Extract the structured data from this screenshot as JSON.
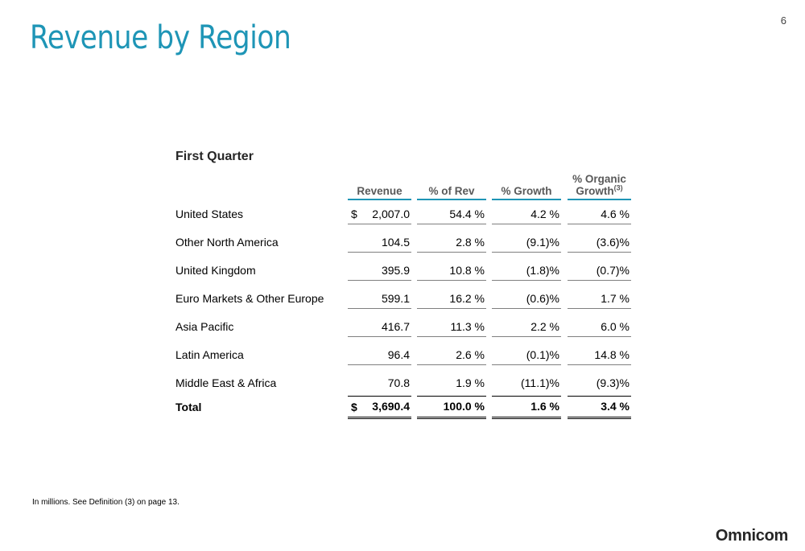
{
  "page_number": "6",
  "title": "Revenue by Region",
  "section": "First Quarter",
  "columns": {
    "revenue": "Revenue",
    "pct_rev": "% of Rev",
    "pct_growth": "% Growth",
    "organic_line1": "% Organic",
    "organic_line2": "Growth",
    "organic_sup": "(3)"
  },
  "rows": [
    {
      "label": "United States",
      "dollar": "$",
      "revenue": "2,007.0",
      "pct_rev": "54.4 %",
      "growth": "4.2 %",
      "organic": "4.6 %"
    },
    {
      "label": "Other North America",
      "dollar": "",
      "revenue": "104.5",
      "pct_rev": "2.8 %",
      "growth": "(9.1)%",
      "organic": "(3.6)%"
    },
    {
      "label": "United Kingdom",
      "dollar": "",
      "revenue": "395.9",
      "pct_rev": "10.8 %",
      "growth": "(1.8)%",
      "organic": "(0.7)%"
    },
    {
      "label": "Euro Markets & Other Europe",
      "dollar": "",
      "revenue": "599.1",
      "pct_rev": "16.2 %",
      "growth": "(0.6)%",
      "organic": "1.7 %"
    },
    {
      "label": "Asia Pacific",
      "dollar": "",
      "revenue": "416.7",
      "pct_rev": "11.3 %",
      "growth": "2.2 %",
      "organic": "6.0 %"
    },
    {
      "label": "Latin America",
      "dollar": "",
      "revenue": "96.4",
      "pct_rev": "2.6 %",
      "growth": "(0.1)%",
      "organic": "14.8 %"
    },
    {
      "label": "Middle East & Africa",
      "dollar": "",
      "revenue": "70.8",
      "pct_rev": "1.9 %",
      "growth": "(11.1)%",
      "organic": "(9.3)%"
    }
  ],
  "total": {
    "label": "Total",
    "dollar": "$",
    "revenue": "3,690.4",
    "pct_rev": "100.0 %",
    "growth": "1.6 %",
    "organic": "3.4 %"
  },
  "footnote": "In millions.  See Definition (3) on page 13.",
  "brand": "Omnicom",
  "colors": {
    "accent": "#1e95b6"
  }
}
